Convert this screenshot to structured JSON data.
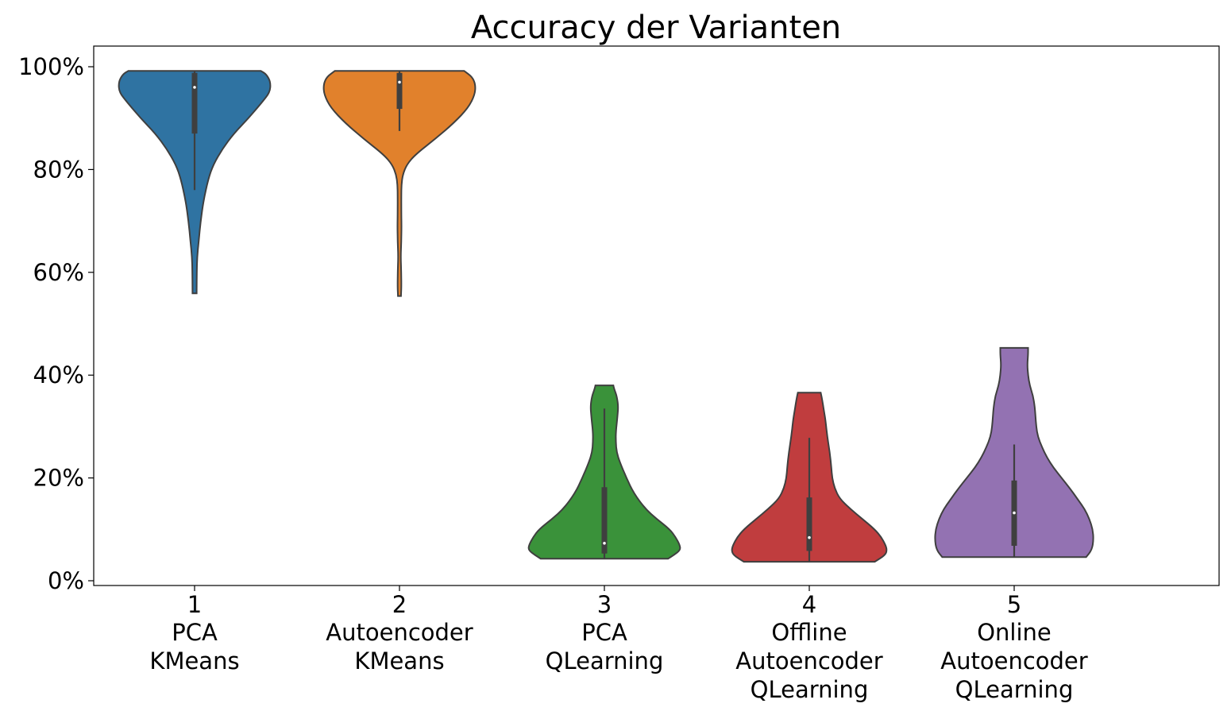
{
  "chart_data": {
    "type": "violin",
    "title": "Accuracy der Varianten",
    "xlabel": "",
    "ylabel": "",
    "ylim": [
      -1,
      104
    ],
    "y_ticks": [
      {
        "value": 0,
        "label": "0%"
      },
      {
        "value": 20,
        "label": "20%"
      },
      {
        "value": 40,
        "label": "40%"
      },
      {
        "value": 60,
        "label": "60%"
      },
      {
        "value": 80,
        "label": "80%"
      },
      {
        "value": 100,
        "label": "100%"
      }
    ],
    "grid": false,
    "legend": "none",
    "categories": [
      {
        "number": "1",
        "lines": [
          "PCA",
          "KMeans"
        ],
        "color": "#2f73a2",
        "min": 55.9,
        "max": 99.2,
        "median": 96,
        "q1": 87,
        "q3": 98.8,
        "whisker_low": 76,
        "whisker_high": 99.2,
        "density": [
          [
            55.9,
            2.5
          ],
          [
            57,
            2.5
          ],
          [
            60,
            2.7
          ],
          [
            63,
            3.2
          ],
          [
            66,
            5
          ],
          [
            70,
            7.5
          ],
          [
            74,
            11
          ],
          [
            78,
            16.5
          ],
          [
            81,
            23
          ],
          [
            84,
            34
          ],
          [
            87,
            48
          ],
          [
            90,
            66
          ],
          [
            93,
            82
          ],
          [
            95,
            92
          ],
          [
            97,
            93
          ],
          [
            98.5,
            88
          ],
          [
            99.2,
            81
          ]
        ]
      },
      {
        "number": "2",
        "lines": [
          "Autoencoder",
          "KMeans"
        ],
        "color": "#e1812c",
        "min": 55.4,
        "max": 99.2,
        "median": 97,
        "q1": 91.8,
        "q3": 98.8,
        "whisker_low": 87.5,
        "whisker_high": 99.2,
        "density": [
          [
            55.4,
            1.8
          ],
          [
            57,
            2.3
          ],
          [
            60,
            2.1
          ],
          [
            63,
            1.5
          ],
          [
            66,
            2.2
          ],
          [
            69,
            2.5
          ],
          [
            72,
            2.2
          ],
          [
            75,
            2.2
          ],
          [
            77,
            2.4
          ],
          [
            79,
            4
          ],
          [
            81,
            9
          ],
          [
            83,
            20
          ],
          [
            86,
            44
          ],
          [
            89,
            66
          ],
          [
            92,
            84
          ],
          [
            94.5,
            92
          ],
          [
            96.5,
            93
          ],
          [
            98,
            89
          ],
          [
            99.2,
            79
          ]
        ]
      },
      {
        "number": "3",
        "lines": [
          "PCA",
          "QLearning"
        ],
        "color": "#3a923a",
        "min": 4.3,
        "max": 38,
        "median": 7.3,
        "q1": 5.3,
        "q3": 18.2,
        "whisker_low": 4.3,
        "whisker_high": 33.5,
        "density": [
          [
            4.3,
            78
          ],
          [
            5,
            85
          ],
          [
            6,
            93
          ],
          [
            7,
            92
          ],
          [
            8.5,
            87
          ],
          [
            10,
            80
          ],
          [
            12,
            64
          ],
          [
            14,
            50
          ],
          [
            17,
            36
          ],
          [
            20,
            27
          ],
          [
            23,
            19
          ],
          [
            25,
            15
          ],
          [
            27,
            14
          ],
          [
            29,
            14
          ],
          [
            32,
            16
          ],
          [
            34,
            17
          ],
          [
            36,
            15
          ],
          [
            37.3,
            12
          ],
          [
            38,
            11
          ]
        ]
      },
      {
        "number": "4",
        "lines": [
          "Offline",
          "Autoencoder",
          "QLearning"
        ],
        "color": "#c03d3e",
        "min": 3.7,
        "max": 36.6,
        "median": 8.4,
        "q1": 5.8,
        "q3": 16.2,
        "whisker_low": 3.7,
        "whisker_high": 27.8,
        "density": [
          [
            3.7,
            80
          ],
          [
            5,
            93
          ],
          [
            6,
            95
          ],
          [
            7,
            93
          ],
          [
            8.5,
            88
          ],
          [
            10,
            80
          ],
          [
            12,
            65
          ],
          [
            14,
            50
          ],
          [
            16,
            37
          ],
          [
            18,
            31
          ],
          [
            20,
            28
          ],
          [
            22,
            27
          ],
          [
            25,
            25
          ],
          [
            28,
            22
          ],
          [
            31,
            20
          ],
          [
            33,
            18
          ],
          [
            35,
            16
          ],
          [
            36.6,
            14
          ]
        ]
      },
      {
        "number": "5",
        "lines": [
          "Online",
          "Autoencoder",
          "QLearning"
        ],
        "color": "#9372b2",
        "min": 4.6,
        "max": 45.3,
        "median": 13.2,
        "q1": 6.8,
        "q3": 19.5,
        "whisker_low": 4.6,
        "whisker_high": 26.5,
        "density": [
          [
            4.6,
            88
          ],
          [
            6,
            95
          ],
          [
            8,
            97
          ],
          [
            10,
            96
          ],
          [
            12,
            92
          ],
          [
            14,
            86
          ],
          [
            16,
            77
          ],
          [
            18,
            68
          ],
          [
            20,
            58
          ],
          [
            22,
            48
          ],
          [
            24,
            40
          ],
          [
            26,
            34
          ],
          [
            28,
            29
          ],
          [
            30,
            27
          ],
          [
            32,
            26
          ],
          [
            34,
            25
          ],
          [
            36,
            23
          ],
          [
            38,
            19
          ],
          [
            40,
            17
          ],
          [
            42,
            16
          ],
          [
            44,
            17
          ],
          [
            45.3,
            17
          ]
        ]
      }
    ]
  }
}
